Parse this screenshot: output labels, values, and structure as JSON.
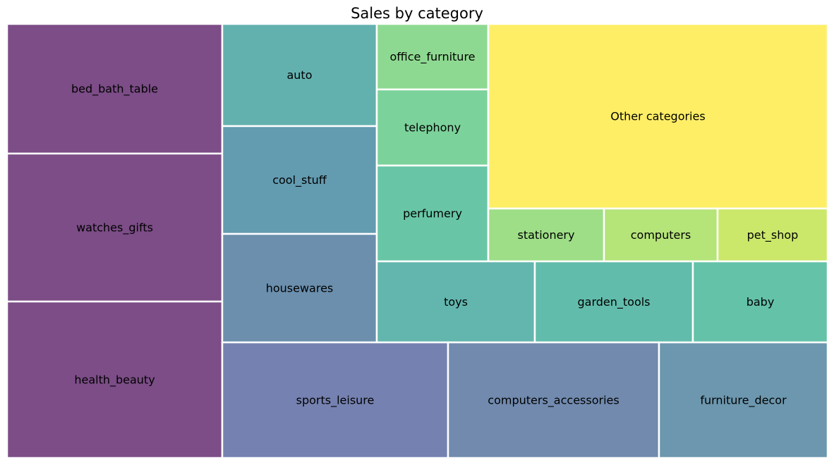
{
  "chart_data": {
    "type": "treemap",
    "title": "Sales by category",
    "items": [
      {
        "name": "bed_bath_table",
        "color": "#440154"
      },
      {
        "name": "watches_gifts",
        "color": "#440154"
      },
      {
        "name": "health_beauty",
        "color": "#440154"
      },
      {
        "name": "auto",
        "color": "#21908d"
      },
      {
        "name": "cool_stuff",
        "color": "#21718e"
      },
      {
        "name": "housewares",
        "color": "#2c5f8a"
      },
      {
        "name": "office_furniture",
        "color": "#5ec962"
      },
      {
        "name": "telephony",
        "color": "#44bf70"
      },
      {
        "name": "perfumery",
        "color": "#28ae80"
      },
      {
        "name": "Other categories",
        "color": "#fde725"
      },
      {
        "name": "stationery",
        "color": "#75d054"
      },
      {
        "name": "computers",
        "color": "#95d840"
      },
      {
        "name": "pet_shop",
        "color": "#b5de2b"
      },
      {
        "name": "toys",
        "color": "#1f978b"
      },
      {
        "name": "garden_tools",
        "color": "#1fa088"
      },
      {
        "name": "baby",
        "color": "#22a884"
      },
      {
        "name": "sports_leisure",
        "color": "#3b4b8f"
      },
      {
        "name": "computers_accessories",
        "color": "#34598c"
      },
      {
        "name": "furniture_decor",
        "color": "#2d6b8b"
      }
    ]
  }
}
